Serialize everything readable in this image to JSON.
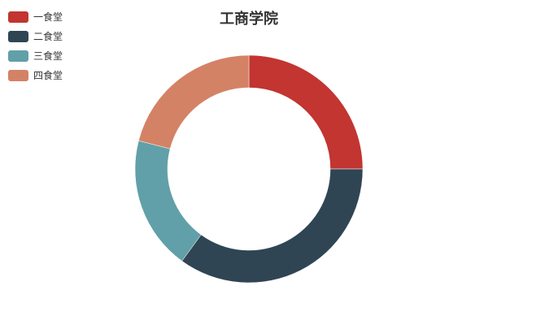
{
  "chart_data": {
    "type": "pie",
    "title": "工商学院",
    "legend_position": "top-left",
    "donut": true,
    "slices": [
      {
        "name": "一食堂",
        "value": 25,
        "color": "#c23531"
      },
      {
        "name": "二食堂",
        "value": 35,
        "color": "#2f4554"
      },
      {
        "name": "三食堂",
        "value": 19,
        "color": "#61a0a8"
      },
      {
        "name": "四食堂",
        "value": 21,
        "color": "#d48265"
      }
    ]
  }
}
